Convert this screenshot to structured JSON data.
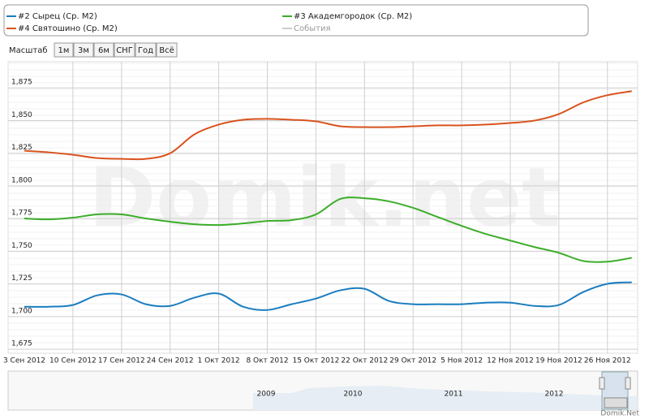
{
  "chart_data": {
    "type": "line",
    "categories": [
      "3 Сен 2012",
      null,
      "10 Сен 2012",
      null,
      "17 Сен 2012",
      null,
      "24 Сен 2012",
      null,
      "1 Окт 2012",
      null,
      "8 Окт 2012",
      null,
      "15 Окт 2012",
      null,
      "22 Окт 2012",
      null,
      "29 Окт 2012",
      null,
      "5 Ноя 2012",
      null,
      "12 Ноя 2012",
      null,
      "19 Ноя 2012",
      null,
      "26 Ноя 2012",
      null
    ],
    "series": [
      {
        "name": "#2 Сырец (Ср. М2)",
        "color": "#1a7dc0",
        "values": [
          1707.6,
          1707.6,
          1708.9,
          1716.3,
          1717.0,
          1709.5,
          1708.2,
          1714.5,
          1717.6,
          1707.6,
          1705.1,
          1709.5,
          1713.8,
          1720.1,
          1721.3,
          1712.0,
          1709.5,
          1709.5,
          1709.5,
          1710.7,
          1710.7,
          1708.2,
          1708.9,
          1718.8,
          1725.1,
          1726.3
        ]
      },
      {
        "name": "#3 Академгородок (Ср. М2)",
        "color": "#3cad2a",
        "values": [
          1775.1,
          1774.4,
          1775.7,
          1778.2,
          1778.2,
          1775.1,
          1772.6,
          1770.7,
          1770.1,
          1771.3,
          1773.2,
          1773.8,
          1778.2,
          1790.0,
          1790.6,
          1788.2,
          1783.2,
          1776.3,
          1769.4,
          1763.2,
          1758.2,
          1753.2,
          1748.8,
          1742.6,
          1742.0,
          1745.0
        ]
      },
      {
        "name": "#4 Святошино (Ср. М2)",
        "color": "#d9531e",
        "values": [
          1826.9,
          1825.7,
          1823.8,
          1821.3,
          1820.7,
          1820.7,
          1825.0,
          1839.4,
          1846.9,
          1850.6,
          1851.3,
          1850.6,
          1849.4,
          1845.6,
          1845.0,
          1845.0,
          1845.6,
          1846.3,
          1846.3,
          1846.9,
          1848.1,
          1850.0,
          1855.0,
          1863.8,
          1869.4,
          1872.5
        ]
      }
    ],
    "events_legend": "События",
    "ylim": [
      1672,
      1895
    ],
    "yticks": [
      {
        "value": 1675,
        "label": "1,675"
      },
      {
        "value": 1700,
        "label": "1,700"
      },
      {
        "value": 1725,
        "label": "1,725"
      },
      {
        "value": 1750,
        "label": "1,750"
      },
      {
        "value": 1775,
        "label": "1,775"
      },
      {
        "value": 1800,
        "label": "1,800"
      },
      {
        "value": 1825,
        "label": "1,825"
      },
      {
        "value": 1850,
        "label": "1,850"
      },
      {
        "value": 1875,
        "label": "1,875"
      }
    ],
    "grid": true,
    "watermark": "Domik.net"
  },
  "scale_selector": {
    "label": "Масштаб",
    "buttons": [
      "1м",
      "3м",
      "6м",
      "СНГ",
      "Год",
      "Всё"
    ]
  },
  "navigator": {
    "labels": [
      "2009",
      "2010",
      "2011",
      "2012"
    ]
  },
  "credit": "Domik.Net"
}
